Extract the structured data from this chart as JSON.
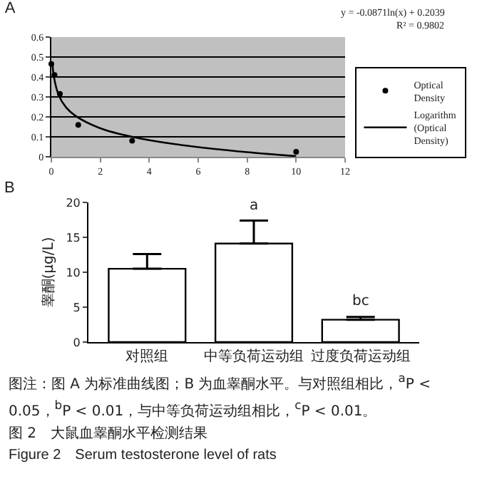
{
  "chart_data": [
    {
      "type": "scatter",
      "title": "A",
      "annotations": [
        "y = -0.0871ln(x) + 0.2039",
        "R² = 0.9802"
      ],
      "series": [
        {
          "name": "Optical Density",
          "color": "#000000",
          "marker": "circle",
          "x": [
            0.0,
            0.13,
            0.35,
            1.1,
            3.3,
            10
          ],
          "values": [
            0.465,
            0.41,
            0.315,
            0.16,
            0.08,
            0.025
          ]
        },
        {
          "name": "Logarithm (Optical Density)",
          "type": "line",
          "color": "#000000",
          "x": [
            0.05,
            0.1,
            0.3,
            0.6,
            1,
            2,
            3.3,
            5,
            8,
            10
          ],
          "values": [
            0.465,
            0.404,
            0.309,
            0.248,
            0.204,
            0.143,
            0.1,
            0.064,
            0.023,
            0.003
          ]
        }
      ],
      "xlim": [
        0,
        12
      ],
      "xticks": [
        0,
        2,
        4,
        6,
        8,
        10,
        12
      ],
      "ylim": [
        0,
        0.6
      ],
      "yticks": [
        0,
        0.1,
        0.2,
        0.3,
        0.4,
        0.5,
        0.6
      ],
      "grid": "y",
      "legend": "right"
    },
    {
      "type": "bar",
      "title": "B",
      "ylabel": "睾酮(μg/L)",
      "categories": [
        "对照组",
        "中等负荷运动组",
        "过度负荷运动组"
      ],
      "values": [
        10.5,
        14.1,
        3.2
      ],
      "color": "#ffffff",
      "errors": [
        [
          10.5,
          12.6
        ],
        [
          14.1,
          17.4
        ],
        [
          3.2,
          3.6
        ]
      ],
      "ylim": [
        0,
        20
      ],
      "yticks": [
        0,
        5,
        10,
        15,
        20
      ],
      "annotations": [
        {
          "text": "a",
          "x": "中等负荷运动组",
          "y": 17.4
        },
        {
          "text": "bc",
          "x": "过度负荷运动组",
          "y": 3.6
        },
        "图注：图 A 为标准曲线图；B 为血睾酮水平。与对照组相比，$^{a}$P < 0.05，$^{b}$P < 0.01，与中等负荷运动组相比，$^{c}$P < 0.01。",
        "图 2　大鼠血睾酮水平检测结果",
        "Figure 2　Serum testosterone level of rats"
      ]
    }
  ]
}
